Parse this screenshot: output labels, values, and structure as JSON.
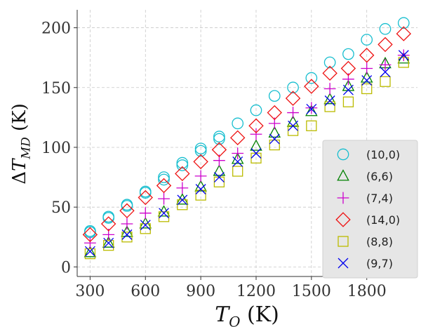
{
  "chart_data": {
    "type": "scatter",
    "xlabel": "T_O (K)",
    "ylabel": "ΔT_MD (K)",
    "xlim": [
      230,
      2075
    ],
    "ylim": [
      -8,
      215
    ],
    "xticks": [
      300,
      600,
      900,
      1200,
      1500,
      1800
    ],
    "yticks": [
      0,
      50,
      100,
      150,
      200
    ],
    "grid": true,
    "legend_position": "lower-right",
    "series": [
      {
        "name": "(10,0)",
        "marker": "circle",
        "color": "#17becf",
        "points": [
          [
            300,
            30
          ],
          [
            300,
            29
          ],
          [
            400,
            42
          ],
          [
            400,
            41
          ],
          [
            500,
            52
          ],
          [
            500,
            51
          ],
          [
            600,
            63
          ],
          [
            600,
            62
          ],
          [
            700,
            75
          ],
          [
            700,
            73
          ],
          [
            800,
            87
          ],
          [
            800,
            85
          ],
          [
            900,
            99
          ],
          [
            900,
            97
          ],
          [
            1000,
            109
          ],
          [
            1000,
            107
          ],
          [
            1100,
            120
          ],
          [
            1200,
            131
          ],
          [
            1300,
            143
          ],
          [
            1400,
            150
          ],
          [
            1500,
            158
          ],
          [
            1600,
            171
          ],
          [
            1700,
            178
          ],
          [
            1800,
            190
          ],
          [
            1900,
            199
          ],
          [
            2000,
            204
          ]
        ]
      },
      {
        "name": "(6,6)",
        "marker": "triangle",
        "color": "#008000",
        "points": [
          [
            300,
            12
          ],
          [
            400,
            20
          ],
          [
            500,
            29
          ],
          [
            600,
            36
          ],
          [
            700,
            46
          ],
          [
            800,
            56
          ],
          [
            900,
            67
          ],
          [
            1000,
            80
          ],
          [
            1100,
            90
          ],
          [
            1200,
            101
          ],
          [
            1300,
            112
          ],
          [
            1400,
            121
          ],
          [
            1500,
            130
          ],
          [
            1600,
            140
          ],
          [
            1700,
            151
          ],
          [
            1800,
            158
          ],
          [
            1900,
            170
          ],
          [
            2000,
            174
          ]
        ]
      },
      {
        "name": "(7,4)",
        "marker": "plus",
        "color": "#cc00cc",
        "points": [
          [
            300,
            20
          ],
          [
            400,
            27
          ],
          [
            500,
            36
          ],
          [
            600,
            45
          ],
          [
            700,
            57
          ],
          [
            800,
            66
          ],
          [
            900,
            76
          ],
          [
            1000,
            89
          ],
          [
            1100,
            95
          ],
          [
            1200,
            111
          ],
          [
            1300,
            120
          ],
          [
            1400,
            129
          ],
          [
            1500,
            133
          ],
          [
            1600,
            149
          ],
          [
            1700,
            157
          ],
          [
            1800,
            166
          ],
          [
            1900,
            169
          ],
          [
            2000,
            177
          ]
        ]
      },
      {
        "name": "(14,0)",
        "marker": "diamond",
        "color": "#ee1111",
        "points": [
          [
            300,
            27
          ],
          [
            400,
            36
          ],
          [
            500,
            47
          ],
          [
            600,
            58
          ],
          [
            700,
            68
          ],
          [
            800,
            78
          ],
          [
            900,
            88
          ],
          [
            1000,
            98
          ],
          [
            1100,
            108
          ],
          [
            1200,
            118
          ],
          [
            1300,
            129
          ],
          [
            1400,
            141
          ],
          [
            1500,
            151
          ],
          [
            1600,
            162
          ],
          [
            1700,
            166
          ],
          [
            1800,
            177
          ],
          [
            1900,
            186
          ],
          [
            2000,
            195
          ]
        ]
      },
      {
        "name": "(8,8)",
        "marker": "square",
        "color": "#bbbb00",
        "points": [
          [
            300,
            11
          ],
          [
            400,
            18
          ],
          [
            500,
            25
          ],
          [
            600,
            32
          ],
          [
            700,
            42
          ],
          [
            800,
            52
          ],
          [
            900,
            60
          ],
          [
            1000,
            71
          ],
          [
            1100,
            80
          ],
          [
            1200,
            91
          ],
          [
            1300,
            102
          ],
          [
            1400,
            114
          ],
          [
            1500,
            118
          ],
          [
            1600,
            134
          ],
          [
            1700,
            138
          ],
          [
            1800,
            149
          ],
          [
            1900,
            155
          ],
          [
            2000,
            171
          ]
        ]
      },
      {
        "name": "(9,7)",
        "marker": "x",
        "color": "#0000ee",
        "points": [
          [
            300,
            13
          ],
          [
            400,
            20
          ],
          [
            500,
            27
          ],
          [
            600,
            35
          ],
          [
            700,
            45
          ],
          [
            800,
            56
          ],
          [
            900,
            65
          ],
          [
            1000,
            75
          ],
          [
            1100,
            88
          ],
          [
            1200,
            95
          ],
          [
            1300,
            107
          ],
          [
            1400,
            118
          ],
          [
            1500,
            132
          ],
          [
            1600,
            139
          ],
          [
            1700,
            148
          ],
          [
            1800,
            156
          ],
          [
            1900,
            163
          ],
          [
            2000,
            177
          ]
        ]
      }
    ]
  }
}
